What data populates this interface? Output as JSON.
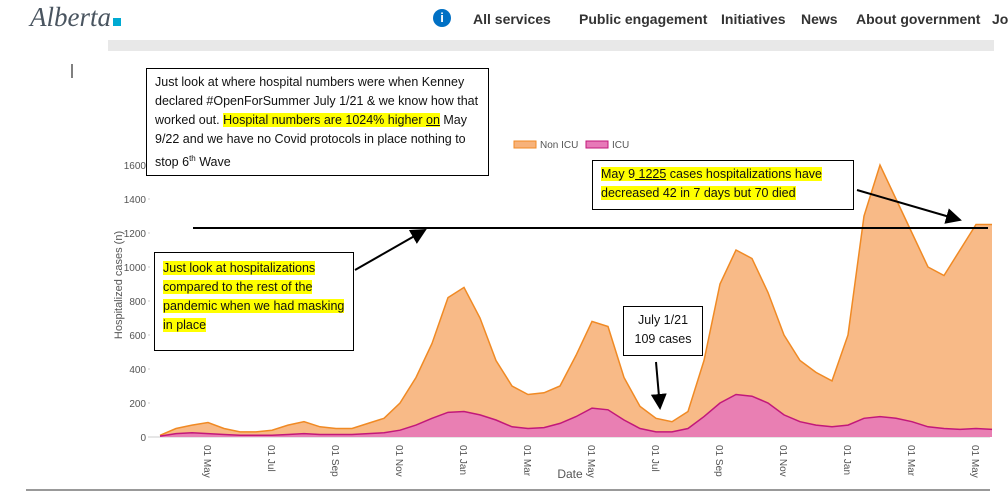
{
  "header": {
    "logo": "Alberta",
    "nav": [
      "All services",
      "Public engagement",
      "Initiatives",
      "News",
      "About government",
      "Jobs"
    ]
  },
  "annotations": {
    "top_box": {
      "parts": [
        "Just look at where hospital numbers were when Kenney declared #OpenForSummer July 1/21 & we know how that worked out. ",
        "Hospital numbers are 1024% higher ",
        "on",
        " May 9/22 and we have no Covid protocols in place nothing to stop 6",
        "th",
        " Wave"
      ]
    },
    "right_box": {
      "parts": [
        "May 9",
        " 1225",
        " cases hospitalizations have decreased 42 in 7 days but 70 died"
      ]
    },
    "left_box": {
      "text": "Just look at hospitalizations compared to the rest of the pandemic when we had masking in place"
    },
    "july_box": {
      "lines": [
        "July 1/21",
        "109 cases"
      ]
    }
  },
  "chart_data": {
    "type": "area",
    "x_label": "Date",
    "y_label": "Hospitalized cases (n)",
    "categories": [
      null,
      null,
      null,
      "01 May",
      null,
      null,
      null,
      "01 Jul",
      null,
      null,
      null,
      "01 Sep",
      null,
      null,
      null,
      "01 Nov",
      null,
      null,
      null,
      "01 Jan",
      null,
      null,
      null,
      "01 Mar",
      null,
      null,
      null,
      "01 May",
      null,
      null,
      null,
      "01 Jul",
      null,
      null,
      null,
      "01 Sep",
      null,
      null,
      null,
      "01 Nov",
      null,
      null,
      null,
      "01 Jan",
      null,
      null,
      null,
      "01 Mar",
      null,
      null,
      null,
      "01 May",
      null
    ],
    "series": [
      {
        "name": "Non ICU",
        "color": "#f7b27a",
        "line_color": "#f08a24",
        "values": [
          10,
          50,
          70,
          85,
          50,
          30,
          30,
          40,
          70,
          90,
          60,
          50,
          50,
          80,
          110,
          200,
          350,
          550,
          820,
          880,
          700,
          450,
          300,
          250,
          260,
          300,
          480,
          680,
          650,
          350,
          180,
          110,
          90,
          150,
          450,
          900,
          1100,
          1050,
          850,
          600,
          450,
          380,
          330,
          600,
          1300,
          1600,
          1400,
          1200,
          1000,
          950,
          1100,
          1250,
          1250
        ]
      },
      {
        "name": "ICU",
        "color": "#e779b8",
        "line_color": "#c2187a",
        "values": [
          5,
          20,
          25,
          20,
          15,
          10,
          10,
          10,
          15,
          20,
          15,
          15,
          15,
          20,
          25,
          40,
          70,
          110,
          145,
          150,
          130,
          100,
          60,
          50,
          55,
          80,
          120,
          170,
          160,
          100,
          50,
          30,
          30,
          50,
          120,
          200,
          250,
          240,
          200,
          130,
          90,
          70,
          60,
          70,
          110,
          120,
          110,
          90,
          60,
          50,
          45,
          50,
          45
        ]
      }
    ],
    "ylim": [
      0,
      1700
    ],
    "yticks": [
      0,
      200,
      400,
      600,
      800,
      1000,
      1200,
      1400,
      1600
    ],
    "legend": "top"
  }
}
